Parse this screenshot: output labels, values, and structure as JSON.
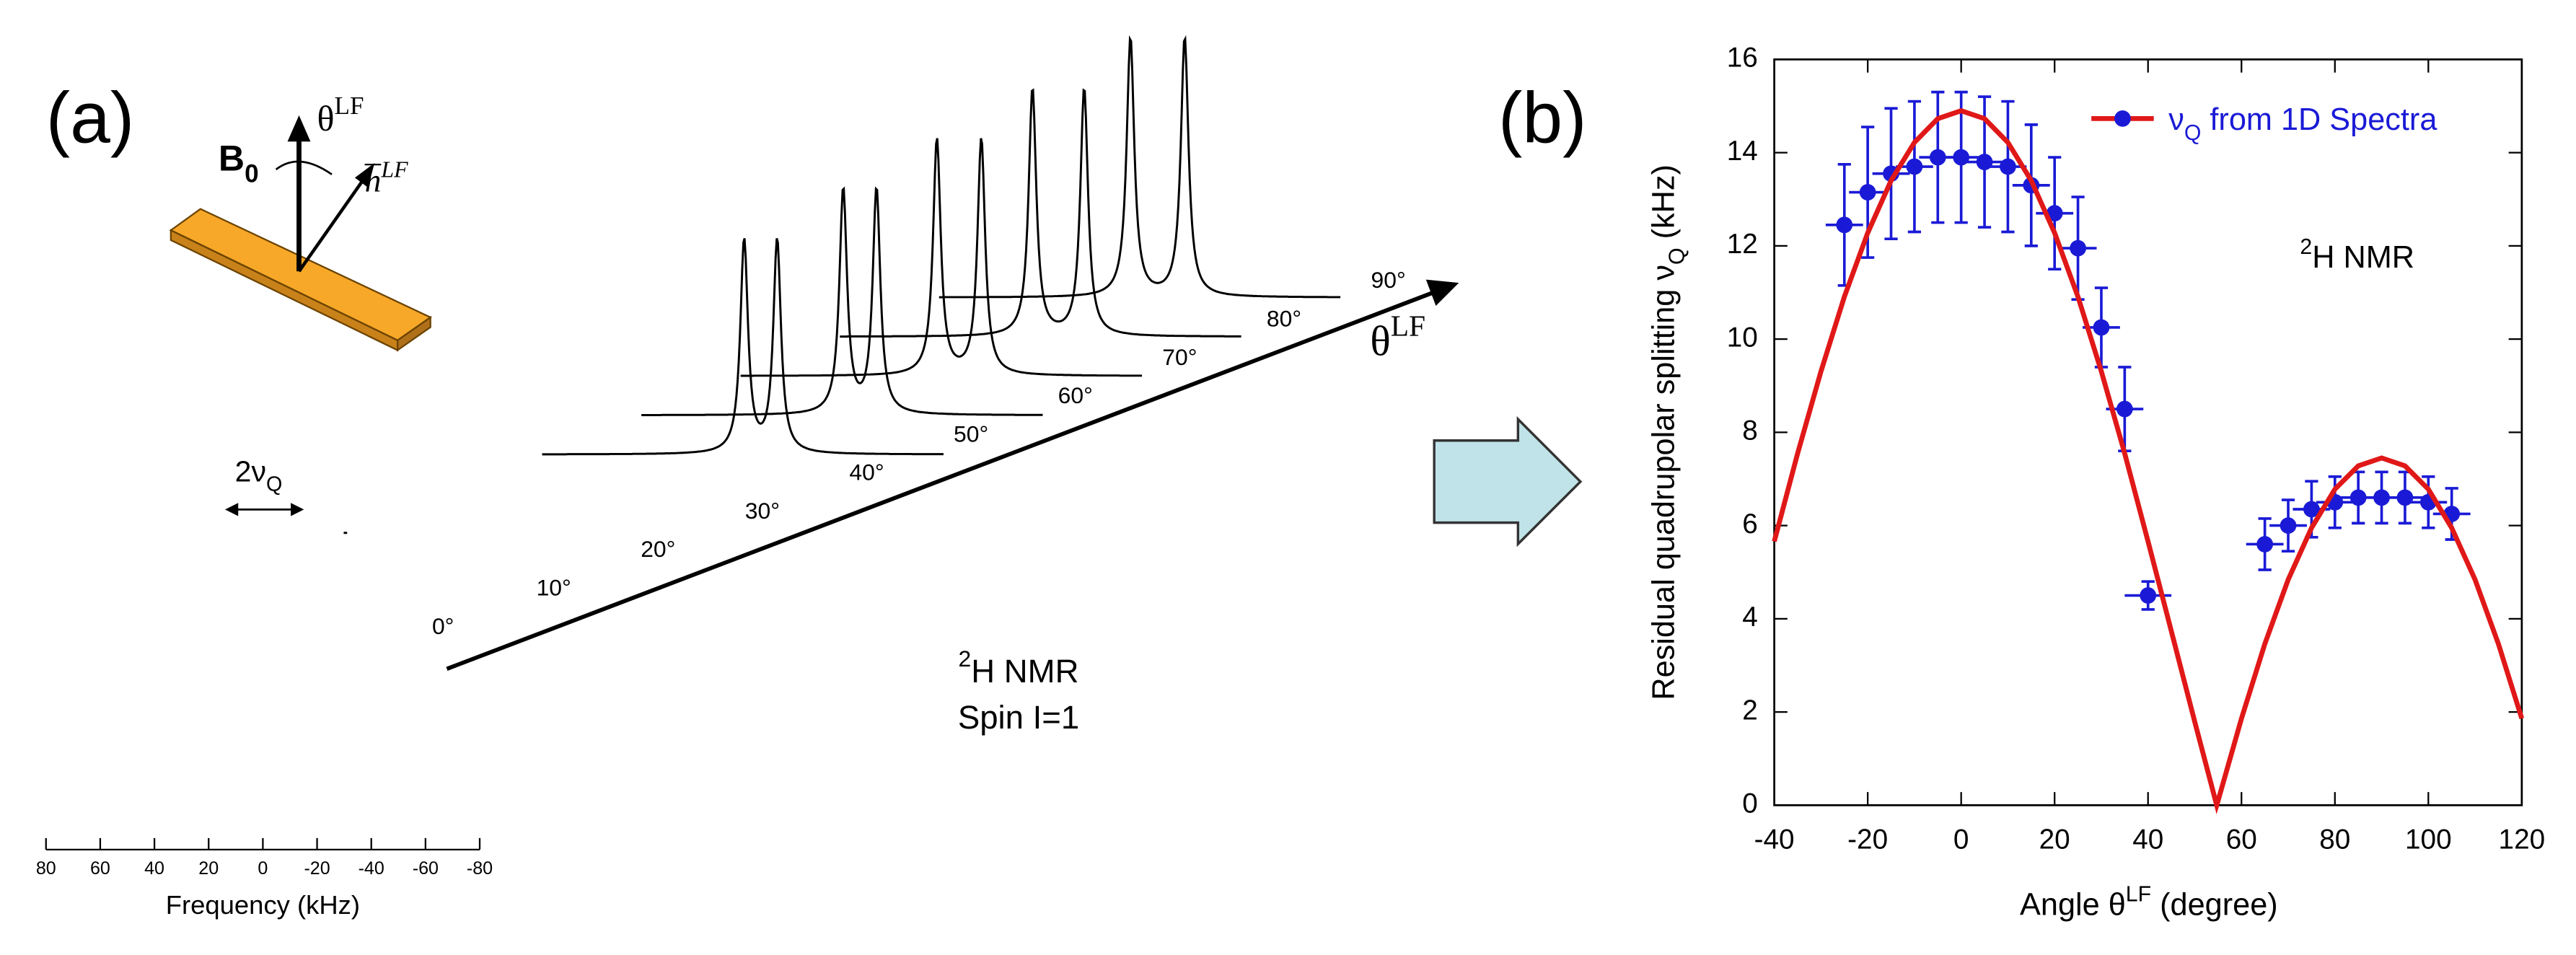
{
  "panel_a": {
    "label": "(a)",
    "field_label": [
      "B",
      "0"
    ],
    "angle_label": [
      "θ",
      "LF"
    ],
    "normal_label": [
      "n",
      "LF"
    ],
    "splitting_label": [
      "2ν",
      "Q"
    ],
    "spectra_labels": [
      "0°",
      "10°",
      "20°",
      "30°",
      "40°",
      "50°",
      "60°",
      "70°",
      "80°",
      "90°"
    ],
    "axis_label": [
      "θ",
      "LF"
    ],
    "nucleus": [
      "2",
      "H NMR"
    ],
    "spin": "Spin I=1",
    "freq_axis": {
      "title": "Frequency (kHz)",
      "xlim": [
        80,
        -80
      ],
      "xticks": [
        80,
        60,
        40,
        20,
        0,
        -20,
        -40,
        -60,
        -80
      ]
    }
  },
  "chart_data": {
    "type": "scatter",
    "label": "(b)",
    "x_label": [
      "Angle  θ",
      "LF",
      "  (degree)"
    ],
    "y_label": [
      "Residual quadrupolar splitting  ν",
      "Q",
      "  (kHz)"
    ],
    "annotation": [
      "2",
      "H NMR"
    ],
    "xlim": [
      -40,
      120
    ],
    "xticks": [
      -40,
      -20,
      0,
      20,
      40,
      60,
      80,
      100,
      120
    ],
    "ylim": [
      0,
      16
    ],
    "yticks": [
      0,
      2,
      4,
      6,
      8,
      10,
      12,
      14,
      16
    ],
    "series": [
      {
        "name": [
          "ν",
          "Q",
          " from 1D Spectra"
        ],
        "color": "#1a1ad6",
        "x": [
          -25,
          -20,
          -15,
          -10,
          -5,
          0,
          5,
          10,
          15,
          20,
          25,
          30,
          35,
          40,
          65,
          70,
          75,
          80,
          85,
          90,
          95,
          100,
          105
        ],
        "values": [
          12.45,
          13.15,
          13.55,
          13.7,
          13.9,
          13.9,
          13.8,
          13.7,
          13.3,
          12.7,
          11.95,
          10.25,
          8.5,
          4.5,
          5.6,
          6.0,
          6.35,
          6.5,
          6.6,
          6.6,
          6.6,
          6.5,
          6.25
        ],
        "xerr": [
          4,
          4,
          4,
          4,
          4,
          4,
          4,
          4,
          4,
          4,
          4,
          4,
          4,
          5,
          4,
          4,
          4,
          4,
          4,
          4,
          4,
          4,
          4
        ],
        "yerr": [
          1.3,
          1.4,
          1.4,
          1.4,
          1.4,
          1.4,
          1.4,
          1.4,
          1.3,
          1.2,
          1.1,
          0.85,
          0.9,
          0.3,
          0.55,
          0.55,
          0.6,
          0.55,
          0.55,
          0.55,
          0.55,
          0.55,
          0.55
        ]
      },
      {
        "type": "line",
        "color": "#e01818",
        "x": [
          -40,
          -35,
          -30,
          -25,
          -20,
          -15,
          -10,
          -5,
          0,
          5,
          10,
          15,
          20,
          25,
          30,
          35,
          40,
          45,
          50,
          54.7,
          55,
          60,
          65,
          70,
          75,
          80,
          85,
          90,
          95,
          100,
          105,
          110,
          115,
          120
        ],
        "values": [
          5.66,
          7.55,
          9.31,
          10.91,
          12.28,
          13.4,
          14.22,
          14.73,
          14.9,
          14.73,
          14.22,
          13.4,
          12.28,
          10.91,
          9.31,
          7.55,
          5.66,
          3.73,
          1.79,
          0,
          0.1,
          1.86,
          3.46,
          4.84,
          5.95,
          6.78,
          7.28,
          7.45,
          7.28,
          6.78,
          5.95,
          4.84,
          3.46,
          1.86
        ]
      }
    ]
  }
}
